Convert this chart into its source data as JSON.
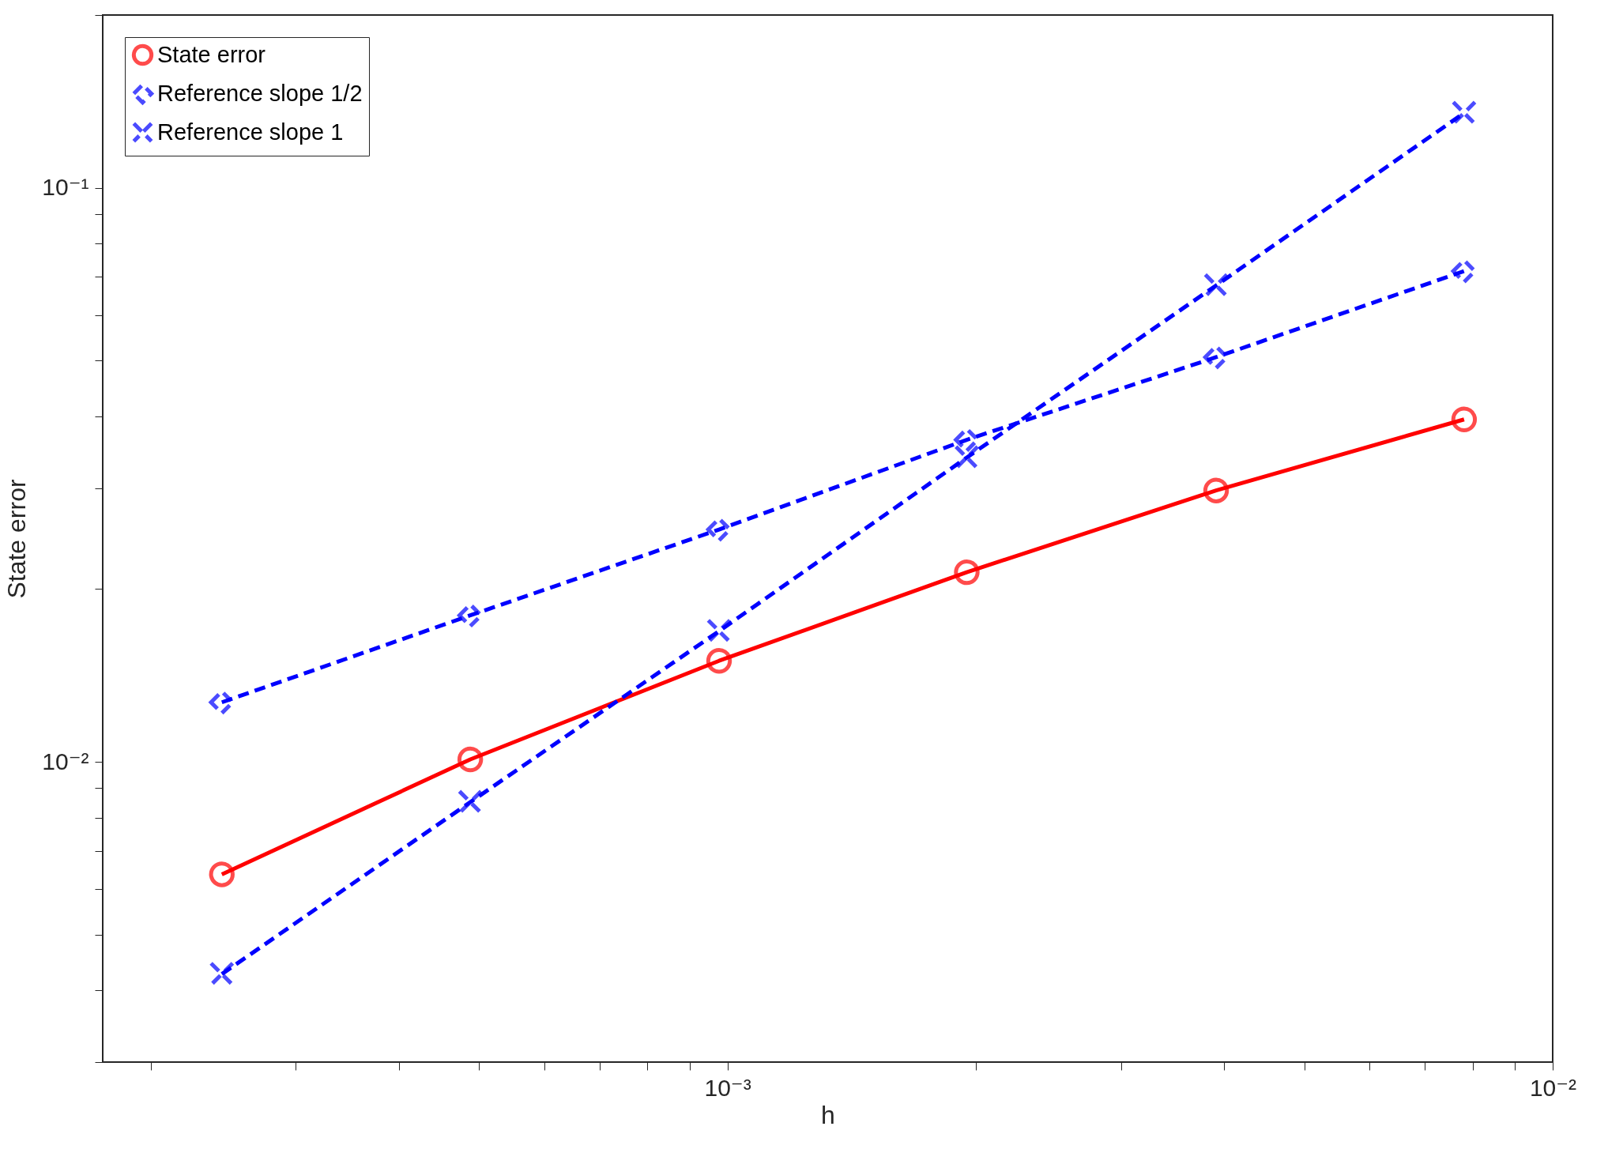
{
  "chart_data": {
    "type": "line",
    "xlabel": "h",
    "ylabel": "State error",
    "log": "xy",
    "legend": "top left",
    "grid": false,
    "x": [
      0.000244,
      0.000488,
      0.000977,
      0.00195,
      0.00391,
      0.00781
    ],
    "xlim": [
      0.000175,
      0.01
    ],
    "xticks": [
      {
        "value": 0.0002,
        "label": null
      },
      {
        "value": 0.0003,
        "label": null
      },
      {
        "value": 0.0004,
        "label": null
      },
      {
        "value": 0.0005,
        "label": null
      },
      {
        "value": 0.0006,
        "label": null
      },
      {
        "value": 0.0007,
        "label": null
      },
      {
        "value": 0.0008,
        "label": null
      },
      {
        "value": 0.0009,
        "label": null
      },
      {
        "value": 0.001,
        "label": "10⁻³"
      },
      {
        "value": 0.002,
        "label": null
      },
      {
        "value": 0.003,
        "label": null
      },
      {
        "value": 0.004,
        "label": null
      },
      {
        "value": 0.005,
        "label": null
      },
      {
        "value": 0.006,
        "label": null
      },
      {
        "value": 0.007,
        "label": null
      },
      {
        "value": 0.008,
        "label": null
      },
      {
        "value": 0.009,
        "label": null
      },
      {
        "value": 0.01,
        "label": "10⁻²"
      }
    ],
    "ylim": [
      0.003,
      0.2
    ],
    "yticks": [
      {
        "value": 0.003,
        "label": null
      },
      {
        "value": 0.004,
        "label": null
      },
      {
        "value": 0.005,
        "label": null
      },
      {
        "value": 0.006,
        "label": null
      },
      {
        "value": 0.007,
        "label": null
      },
      {
        "value": 0.008,
        "label": null
      },
      {
        "value": 0.009,
        "label": null
      },
      {
        "value": 0.01,
        "label": "10⁻²"
      },
      {
        "value": 0.02,
        "label": null
      },
      {
        "value": 0.03,
        "label": null
      },
      {
        "value": 0.04,
        "label": null
      },
      {
        "value": 0.05,
        "label": null
      },
      {
        "value": 0.06,
        "label": null
      },
      {
        "value": 0.07,
        "label": null
      },
      {
        "value": 0.08,
        "label": null
      },
      {
        "value": 0.09,
        "label": null
      },
      {
        "value": 0.1,
        "label": "10⁻¹"
      },
      {
        "value": 0.2,
        "label": null
      }
    ],
    "series": [
      {
        "name": "State error",
        "color": "#ff0000",
        "marker": "circle",
        "line_style": "solid",
        "values": [
          0.00637,
          0.0101,
          0.015,
          0.0214,
          0.0297,
          0.0395
        ]
      },
      {
        "name": "Reference slope 1/2",
        "color": "#0000ff",
        "marker": "diamond",
        "line_style": "dashed",
        "values": [
          0.0127,
          0.018,
          0.0254,
          0.0364,
          0.0507,
          0.0716
        ]
      },
      {
        "name": "Reference slope 1",
        "color": "#0000ff",
        "marker": "cross",
        "line_style": "dashed",
        "values": [
          0.00427,
          0.00851,
          0.0169,
          0.0339,
          0.0676,
          0.135
        ]
      }
    ]
  }
}
